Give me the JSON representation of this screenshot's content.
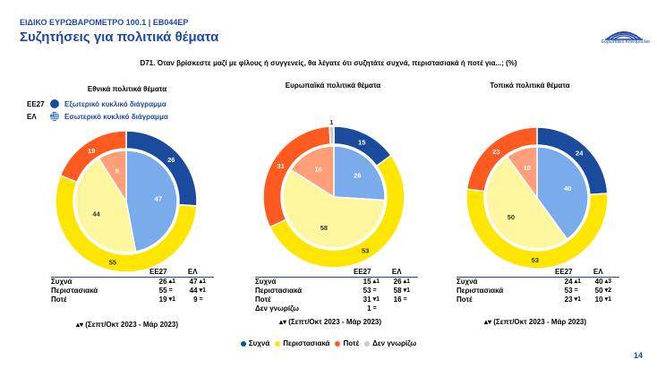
{
  "header": {
    "subtitle": "ΕΙΔΙΚΟ ΕΥΡΩΒΑΡΟΜΕΤΡΟ 100.1 | EB044EP",
    "title": "Συζητήσεις για πολιτικά θέματα",
    "logo_text": "Ευρωπαϊκό Κοινοβούλιο"
  },
  "question": "D71. Όταν βρίσκεστε μαζί με φίλους ή συγγενείς, θα λέγατε ότι συζητάτε συχνά, περιστασιακά ή ποτέ για...; (%)",
  "colors": {
    "often_outer": "#1a4b9c",
    "occasionally_outer": "#ffe600",
    "never_outer": "#ff5a1f",
    "dontknow_outer": "#c9c9c9",
    "often_inner": "#7aabea",
    "occasionally_inner": "#fff6a0",
    "never_inner": "#ff9f7a",
    "dontknow_inner": "#e3e3e3",
    "accent": "#1f47a8"
  },
  "ring_legend": {
    "outer_code": "ΕΕ27",
    "outer_label": "Εξωτερικό κυκλικό διάγραμμα",
    "inner_code": "ΕΛ",
    "inner_label": "Εσωτερικό κυκλικό διάγραμμα"
  },
  "table_head": {
    "col1": "ΕΕ27",
    "col2": "ΕΛ"
  },
  "period_label": "▴▾ (Σεπτ/Οκτ 2023 - Μάρ 2023)",
  "chart_data": [
    {
      "type": "pie",
      "title": "Εθνικά πολιτικά θέματα",
      "categories": [
        "Συχνά",
        "Περιστασιακά",
        "Ποτέ"
      ],
      "series": [
        {
          "name": "ΕΕ27",
          "ring": "outer",
          "values": [
            26,
            55,
            19
          ],
          "changes": [
            "▴1",
            "=",
            "▾1"
          ]
        },
        {
          "name": "ΕΛ",
          "ring": "inner",
          "values": [
            47,
            44,
            9
          ],
          "changes": [
            "▴1",
            "▾1",
            "="
          ]
        }
      ]
    },
    {
      "type": "pie",
      "title": "Ευρωπαϊκά πολιτικά θέματα",
      "categories": [
        "Συχνά",
        "Περιστασιακά",
        "Ποτέ",
        "Δεν γνωρίζω"
      ],
      "series": [
        {
          "name": "ΕΕ27",
          "ring": "outer",
          "values": [
            15,
            53,
            31,
            1
          ],
          "changes": [
            "▴1",
            "=",
            "▾1",
            "="
          ]
        },
        {
          "name": "ΕΛ",
          "ring": "inner",
          "values": [
            26,
            58,
            16,
            null
          ],
          "changes": [
            "▴1",
            "▾1",
            "=",
            ""
          ]
        }
      ]
    },
    {
      "type": "pie",
      "title": "Τοπικά πολιτικά θέματα",
      "categories": [
        "Συχνά",
        "Περιστασιακά",
        "Ποτέ"
      ],
      "series": [
        {
          "name": "ΕΕ27",
          "ring": "outer",
          "values": [
            24,
            53,
            23
          ],
          "changes": [
            "▴1",
            "=",
            "▾1"
          ]
        },
        {
          "name": "ΕΛ",
          "ring": "inner",
          "values": [
            40,
            50,
            10
          ],
          "changes": [
            "▴3",
            "▾2",
            "▾1"
          ]
        }
      ]
    }
  ],
  "bottom_legend": [
    "Συχνά",
    "Περιστασιακά",
    "Ποτέ",
    "Δεν γνωρίζω"
  ],
  "page_number": "14"
}
